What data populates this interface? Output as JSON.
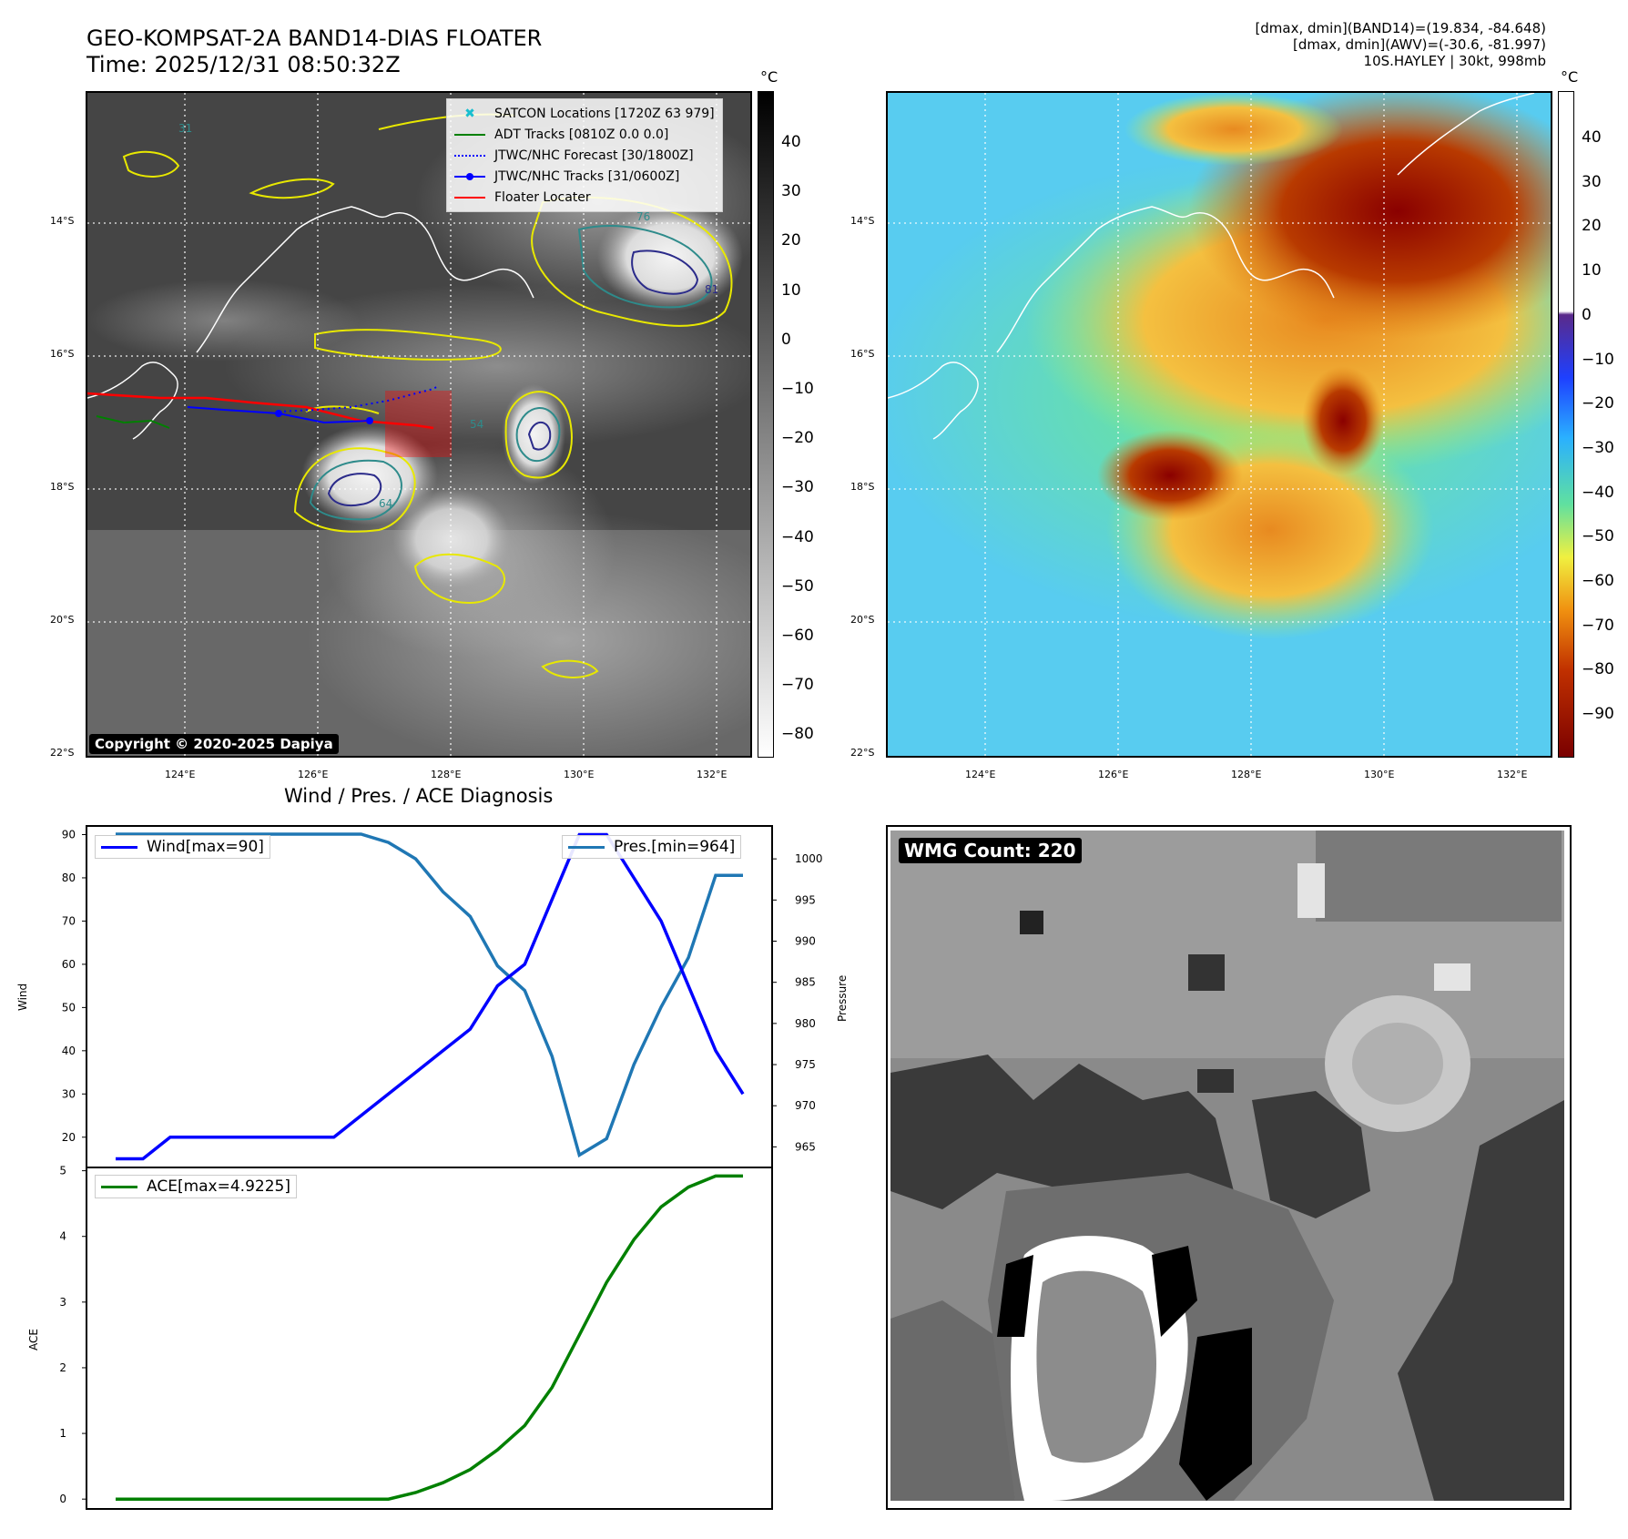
{
  "header": {
    "title_line1": "GEO-KOMPSAT-2A BAND14-DIAS FLOATER",
    "title_line2": "Time: 2025/12/31 08:50:32Z",
    "info_line1": "[dmax, dmin](BAND14)=(19.834, -84.648)",
    "info_line2": "[dmax, dmin](AWV)=(-30.6, -81.997)",
    "info_line3": "10S.HAYLEY | 30kt, 998mb"
  },
  "map_axes": {
    "lat_labels": [
      "14°S",
      "16°S",
      "18°S",
      "20°S",
      "22°S"
    ],
    "lon_labels": [
      "124°E",
      "126°E",
      "128°E",
      "130°E",
      "132°E"
    ]
  },
  "ir_panel": {
    "unit": "°C",
    "colorbar_ticks": [
      "40",
      "30",
      "20",
      "10",
      "0",
      "−10",
      "−20",
      "−30",
      "−40",
      "−50",
      "−60",
      "−70",
      "−80"
    ],
    "copyright": "Copyright © 2020-2025 Dapiya",
    "contour_labels": [
      "31",
      "76",
      "81",
      "54",
      "64"
    ],
    "legend": [
      {
        "label": "SATCON Locations [1720Z 63 979]",
        "color": "#17becf",
        "style": "marker"
      },
      {
        "label": "ADT Tracks [0810Z 0.0 0.0]",
        "color": "#008000",
        "style": "solid"
      },
      {
        "label": "JTWC/NHC Forecast [30/1800Z]",
        "color": "#0000ff",
        "style": "dotted"
      },
      {
        "label": "JTWC/NHC Tracks [31/0600Z]",
        "color": "#0000ff",
        "style": "solid-dot"
      },
      {
        "label": "Floater Locater",
        "color": "#ff0000",
        "style": "solid"
      }
    ]
  },
  "color_panel": {
    "unit": "°C",
    "colorbar_ticks": [
      "40",
      "30",
      "20",
      "10",
      "0",
      "−10",
      "−20",
      "−30",
      "−40",
      "−50",
      "−60",
      "−70",
      "−80",
      "−90"
    ]
  },
  "diag": {
    "title": "Wind / Pres. / ACE Diagnosis",
    "wind_ylabel": "Wind",
    "pres_ylabel": "Pressure",
    "ace_ylabel": "ACE",
    "wind_legend": "Wind[max=90]",
    "pres_legend": "Pres.[min=964]",
    "ace_legend": "ACE[max=4.9225]",
    "colors": {
      "wind": "#0000ff",
      "pres": "#1f77b4",
      "ace": "#008000"
    }
  },
  "wmg": {
    "badge": "WMG Count: 220"
  },
  "chart_data": [
    {
      "type": "line",
      "title": "Wind / Pres. / ACE Diagnosis",
      "x": [
        0,
        1,
        2,
        3,
        4,
        5,
        6,
        7,
        8,
        9,
        10,
        11,
        12,
        13,
        14,
        15,
        16,
        17,
        18,
        19,
        20,
        21,
        22,
        23
      ],
      "series": [
        {
          "name": "Wind[max=90]",
          "axis": "left",
          "ylabel": "Wind",
          "ylim": [
            13,
            92
          ],
          "values": [
            15,
            15,
            20,
            20,
            20,
            20,
            20,
            20,
            20,
            25,
            30,
            35,
            40,
            45,
            55,
            60,
            75,
            90,
            90,
            80,
            70,
            55,
            40,
            30
          ]
        },
        {
          "name": "Pres.[min=964]",
          "axis": "right",
          "ylabel": "Pressure",
          "ylim": [
            962.5,
            1004
          ],
          "values": [
            1003,
            1003,
            1003,
            1003,
            1003,
            1003,
            1003,
            1003,
            1003,
            1003,
            1002,
            1000,
            996,
            993,
            987,
            984,
            976,
            964,
            966,
            975,
            982,
            988,
            998,
            998
          ]
        }
      ],
      "left_ticks": [
        20,
        30,
        40,
        50,
        60,
        70,
        80,
        90
      ],
      "right_ticks": [
        965,
        970,
        975,
        980,
        985,
        990,
        995,
        1000
      ]
    },
    {
      "type": "line",
      "x": [
        0,
        1,
        2,
        3,
        4,
        5,
        6,
        7,
        8,
        9,
        10,
        11,
        12,
        13,
        14,
        15,
        16,
        17,
        18,
        19,
        20,
        21,
        22,
        23
      ],
      "series": [
        {
          "name": "ACE[max=4.9225]",
          "ylabel": "ACE",
          "ylim": [
            -0.15,
            5.05
          ],
          "values": [
            0,
            0,
            0,
            0,
            0,
            0,
            0,
            0,
            0,
            0,
            0,
            0.1,
            0.25,
            0.45,
            0.75,
            1.12,
            1.7,
            2.5,
            3.3,
            3.95,
            4.45,
            4.75,
            4.92,
            4.92
          ]
        }
      ],
      "ticks": [
        0,
        1,
        2,
        3,
        4,
        5
      ]
    }
  ]
}
